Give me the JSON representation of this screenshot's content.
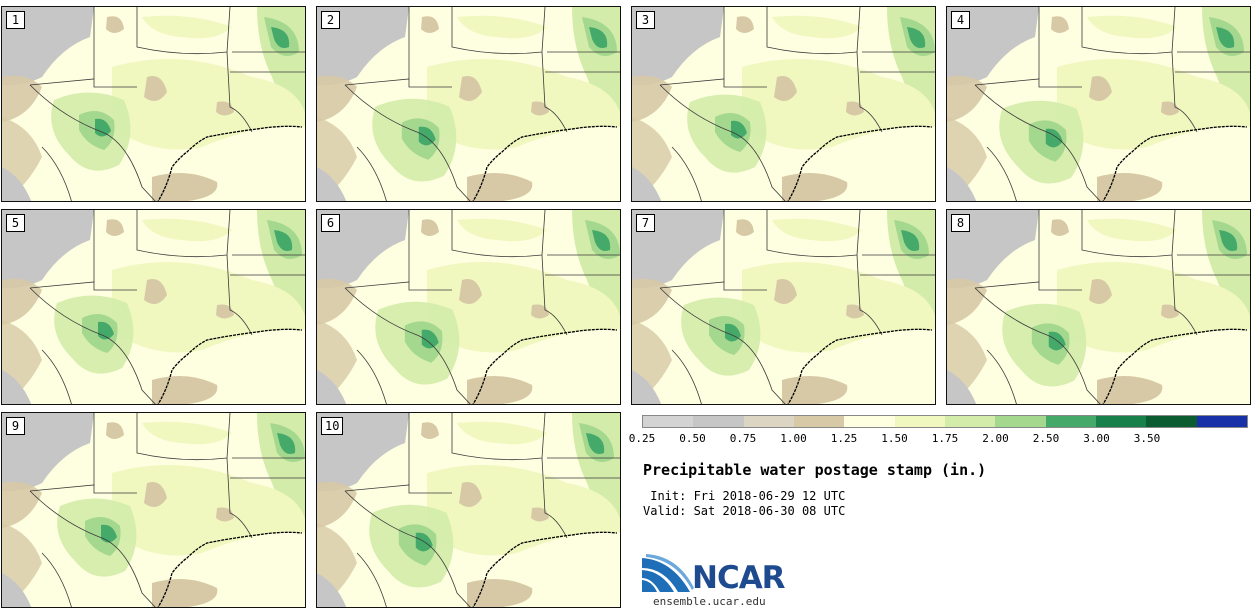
{
  "members": [
    "1",
    "2",
    "3",
    "4",
    "5",
    "6",
    "7",
    "8",
    "9",
    "10"
  ],
  "legend": {
    "ticks": [
      "0.25",
      "0.50",
      "0.75",
      "1.00",
      "1.25",
      "1.50",
      "1.75",
      "2.00",
      "2.50",
      "3.00",
      "3.50"
    ],
    "colors": [
      "#d3d3d3",
      "#c6c6c6",
      "#dcd5c4",
      "#d7c9a6",
      "#fefee0",
      "#f0f8c0",
      "#d3ecaa",
      "#a5d88f",
      "#45a96a",
      "#18804a",
      "#0c5c32",
      "#1830a8"
    ]
  },
  "title": "Precipitable water postage stamp (in.)",
  "init": " Init: Fri 2018-06-29 12 UTC",
  "valid": "Valid: Sat 2018-06-30 08 UTC",
  "logo": {
    "text": "NCAR",
    "site": "ensemble.ucar.edu"
  }
}
